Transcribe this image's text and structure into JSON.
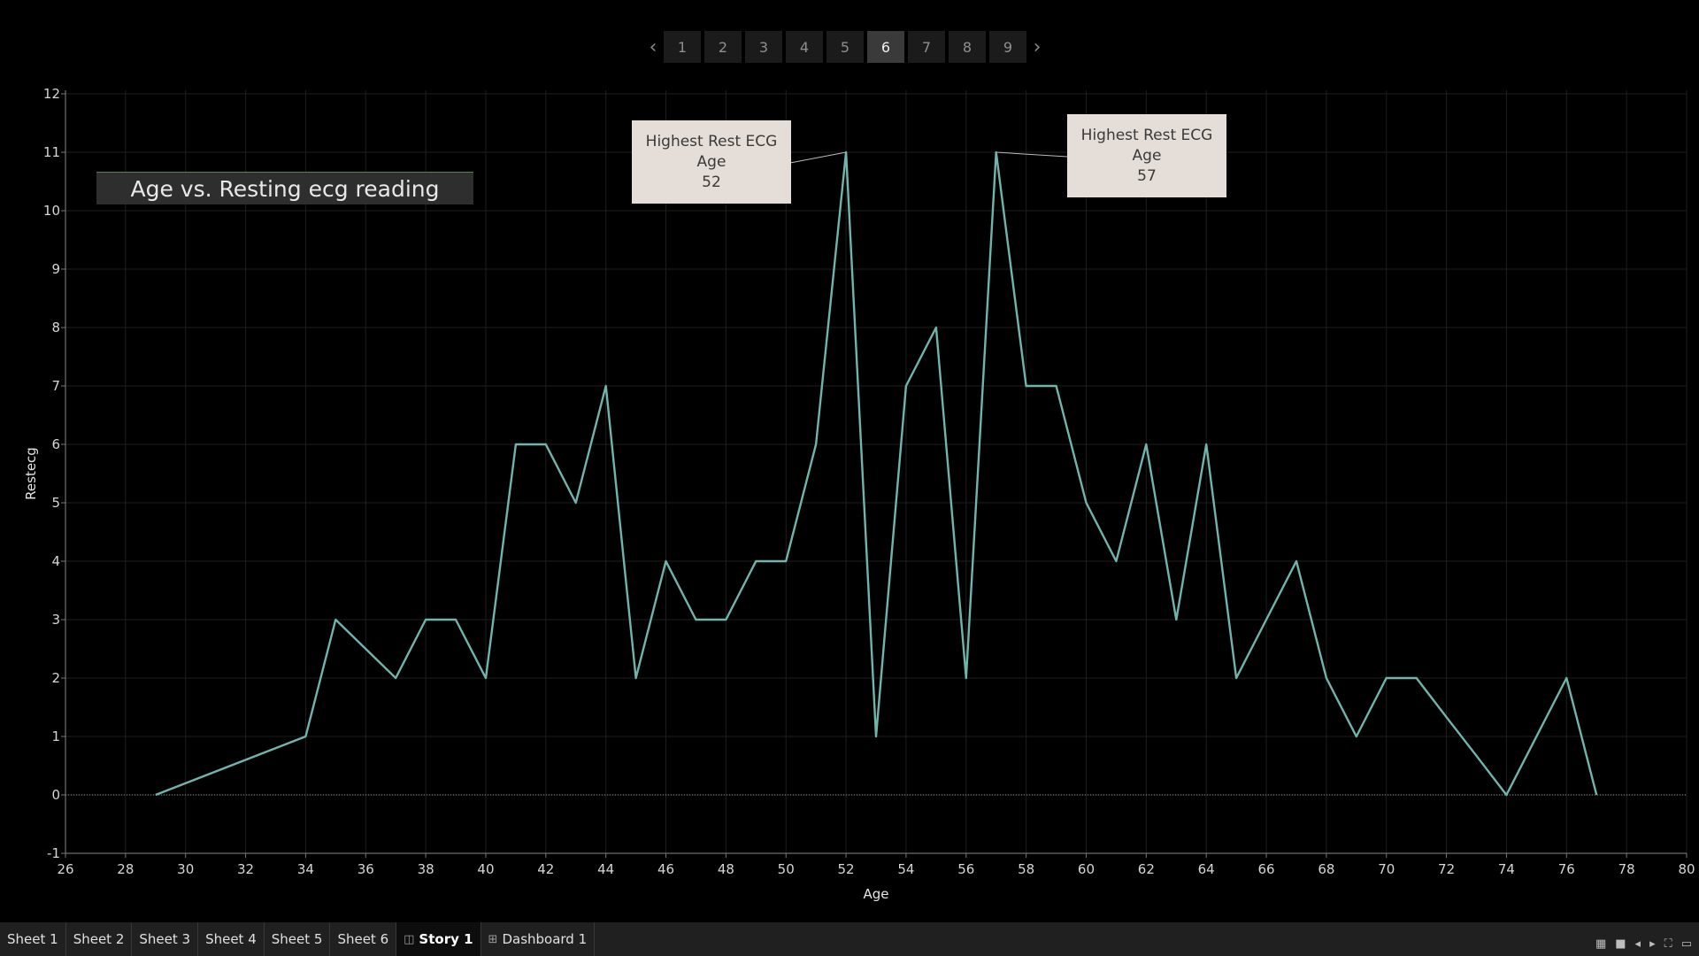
{
  "pager": {
    "prev_icon": "chevron-left-icon",
    "next_icon": "chevron-right-icon",
    "pages": [
      "1",
      "2",
      "3",
      "4",
      "5",
      "6",
      "7",
      "8",
      "9"
    ],
    "active": "6"
  },
  "chart_data": {
    "type": "line",
    "title": "Age vs. Resting ecg reading",
    "xlabel": "Age",
    "ylabel": "Restecg",
    "xlim": [
      26,
      80
    ],
    "ylim": [
      -1,
      12
    ],
    "x_ticks": [
      "26",
      "28",
      "30",
      "32",
      "34",
      "36",
      "38",
      "40",
      "42",
      "44",
      "46",
      "48",
      "50",
      "52",
      "54",
      "56",
      "58",
      "60",
      "62",
      "64",
      "66",
      "68",
      "70",
      "72",
      "74",
      "76",
      "78",
      "80"
    ],
    "y_ticks": [
      "-1",
      "0",
      "1",
      "2",
      "3",
      "4",
      "5",
      "6",
      "7",
      "8",
      "9",
      "10",
      "11",
      "12"
    ],
    "grid": true,
    "zero_line": "dotted",
    "color": "#6fb5ad",
    "series": [
      {
        "x": [
          29,
          34,
          35,
          37,
          38,
          39,
          40,
          41,
          42,
          43,
          44,
          45,
          46,
          47,
          48,
          49,
          50,
          51,
          52,
          53,
          54,
          55,
          56,
          57,
          58,
          59,
          60,
          61,
          62,
          63,
          64,
          65,
          66,
          67,
          68,
          69,
          70,
          71,
          72,
          73,
          74,
          76,
          77
        ],
        "values": [
          0,
          1,
          3,
          2,
          3,
          3,
          2,
          6,
          6,
          5,
          7,
          2,
          4,
          3,
          3,
          4,
          4,
          6,
          11,
          1,
          7,
          8,
          2,
          11,
          7,
          7,
          5,
          4,
          6,
          3,
          6,
          2,
          3,
          4,
          2,
          1,
          2,
          2,
          1.33,
          0.67,
          0,
          2,
          0
        ]
      }
    ],
    "annotations": [
      {
        "line1": "Highest Rest ECG",
        "line2": "Age",
        "line3": "52",
        "x": 52,
        "y": 11
      },
      {
        "line1": "Highest Rest ECG",
        "line2": "Age",
        "line3": "57",
        "x": 57,
        "y": 11
      }
    ]
  },
  "tabs": [
    {
      "label": "Sheet 1"
    },
    {
      "label": "Sheet 2"
    },
    {
      "label": "Sheet 3"
    },
    {
      "label": "Sheet 4"
    },
    {
      "label": "Sheet 5"
    },
    {
      "label": "Sheet 6"
    },
    {
      "label": "Story 1",
      "icon": "story-icon"
    },
    {
      "label": "Dashboard 1",
      "icon": "dashboard-icon"
    }
  ],
  "status_icons": [
    "grid-view-icon",
    "single-view-icon",
    "prev-icon",
    "next-icon",
    "fullscreen-icon",
    "presentation-icon"
  ]
}
